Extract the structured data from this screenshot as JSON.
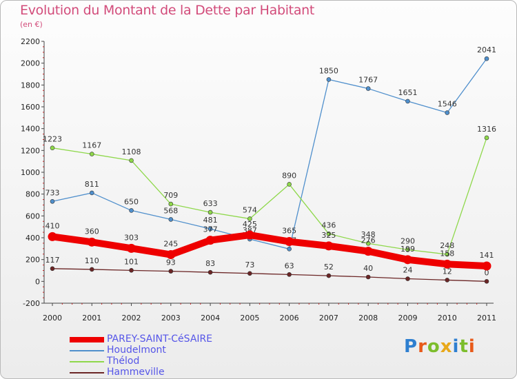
{
  "chart_data": {
    "type": "line",
    "title": "Evolution du Montant de la Dette par Habitant",
    "subtitle": "(en €)",
    "xlabel": "",
    "ylabel": "",
    "x": [
      "2000",
      "2001",
      "2002",
      "2003",
      "2004",
      "2005",
      "2006",
      "2007",
      "2008",
      "2009",
      "2010",
      "2011"
    ],
    "ylim": [
      -200,
      2200
    ],
    "yticks": [
      -200,
      0,
      200,
      400,
      600,
      800,
      1000,
      1200,
      1400,
      1600,
      1800,
      2000,
      2200
    ],
    "grid": false,
    "legend_position": "bottom-left",
    "series": [
      {
        "name": "Houdelmont",
        "color": "#4f8fcc",
        "values": [
          733,
          811,
          650,
          568,
          481,
          387,
          297,
          1850,
          1767,
          1651,
          1546,
          2041
        ],
        "labels": [
          "733",
          "811",
          "650",
          "568",
          "481",
          "387",
          "297",
          "1850",
          "1767",
          "1651",
          "1546",
          "2041"
        ]
      },
      {
        "name": "Thélod",
        "color": "#8ed84a",
        "values": [
          1223,
          1167,
          1108,
          709,
          633,
          574,
          890,
          436,
          348,
          290,
          248,
          1316
        ],
        "labels": [
          "1223",
          "1167",
          "1108",
          "709",
          "633",
          "574",
          "890",
          "436",
          "348",
          "290",
          "248",
          "1316"
        ]
      },
      {
        "name": "Hammeville",
        "color": "#6b2525",
        "values": [
          117,
          110,
          101,
          93,
          83,
          73,
          63,
          52,
          40,
          24,
          12,
          0
        ],
        "labels": [
          "117",
          "110",
          "101",
          "93",
          "83",
          "73",
          "63",
          "52",
          "40",
          "24",
          "12",
          "0"
        ]
      },
      {
        "name": "PAREY-SAINT-CéSAIRE",
        "color": "#ee0000",
        "values": [
          410,
          360,
          303,
          245,
          377,
          425,
          365,
          325,
          276,
          199,
          158,
          141
        ],
        "labels": [
          "410",
          "360",
          "303",
          "245",
          "377",
          "425",
          "365",
          "325",
          "276",
          "199",
          "158",
          "141"
        ]
      }
    ]
  },
  "legend": [
    {
      "label": "PAREY-SAINT-CéSAIRE",
      "color": "#ee0000"
    },
    {
      "label": "Houdelmont",
      "color": "#4f8fcc"
    },
    {
      "label": "Thélod",
      "color": "#8ed84a"
    },
    {
      "label": "Hammeville",
      "color": "#6b2525"
    }
  ],
  "logo": {
    "text": "Proxiti",
    "colors": [
      "#2e7fd0",
      "#e85a1a",
      "#7cbd2c",
      "#e8a81a",
      "#2e7fd0",
      "#7cbd2c",
      "#e85a1a"
    ]
  }
}
